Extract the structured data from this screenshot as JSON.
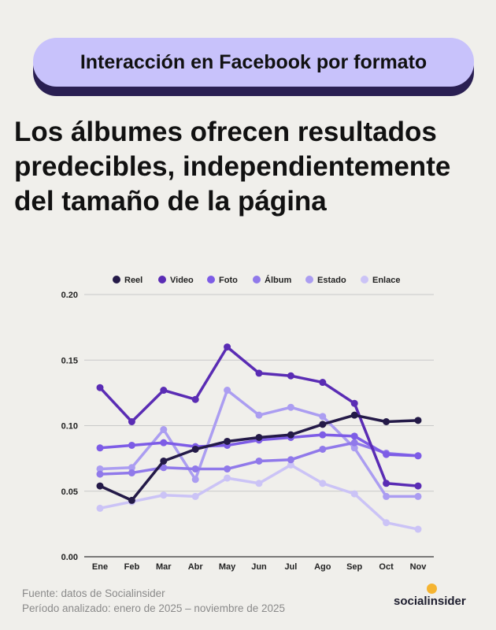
{
  "badge": {
    "label": "Interacción en Facebook por formato"
  },
  "headline": {
    "lines": [
      "Los álbumes ofrecen resultados",
      "predecibles, independientemente",
      "del tamaño de la página"
    ]
  },
  "chart_data": {
    "type": "line",
    "categories": [
      "Ene",
      "Feb",
      "Mar",
      "Abr",
      "May",
      "Jun",
      "Jul",
      "Ago",
      "Sep",
      "Oct",
      "Nov"
    ],
    "ylim": [
      0,
      0.2
    ],
    "yticks": [
      0,
      0.05,
      0.1,
      0.15,
      0.2
    ],
    "ytick_labels": [
      "0.00",
      "0.05",
      "0.10",
      "0.15",
      "0.20"
    ],
    "grid": true,
    "legend_position": "top-center",
    "series": [
      {
        "name": "Reel",
        "color": "#241a48",
        "values": [
          0.054,
          0.043,
          0.073,
          0.082,
          0.088,
          0.091,
          0.093,
          0.101,
          0.108,
          0.103,
          0.104
        ]
      },
      {
        "name": "Video",
        "color": "#5a2cb4",
        "values": [
          0.129,
          0.103,
          0.127,
          0.12,
          0.16,
          0.14,
          0.138,
          0.133,
          0.117,
          0.056,
          0.054
        ]
      },
      {
        "name": "Foto",
        "color": "#7d5ce6",
        "values": [
          0.083,
          0.085,
          0.087,
          0.084,
          0.085,
          0.089,
          0.091,
          0.093,
          0.092,
          0.078,
          0.077
        ]
      },
      {
        "name": "Álbum",
        "color": "#9079ea",
        "values": [
          0.063,
          0.064,
          0.068,
          0.067,
          0.067,
          0.073,
          0.074,
          0.082,
          0.087,
          0.079,
          0.077
        ]
      },
      {
        "name": "Estado",
        "color": "#ab9df1",
        "values": [
          0.067,
          0.068,
          0.097,
          0.059,
          0.127,
          0.108,
          0.114,
          0.107,
          0.083,
          0.046,
          0.046
        ]
      },
      {
        "name": "Enlace",
        "color": "#cbc3f6",
        "values": [
          0.037,
          0.042,
          0.047,
          0.046,
          0.06,
          0.056,
          0.07,
          0.056,
          0.048,
          0.026,
          0.021
        ]
      }
    ]
  },
  "footer": {
    "source": "Fuente: datos de Socialinsider",
    "period": "Período analizado: enero de 2025 – noviembre de 2025"
  },
  "logo": {
    "text_before": "social",
    "text_i": "i",
    "text_after": "nsider",
    "sun_color": "#f5b431"
  }
}
